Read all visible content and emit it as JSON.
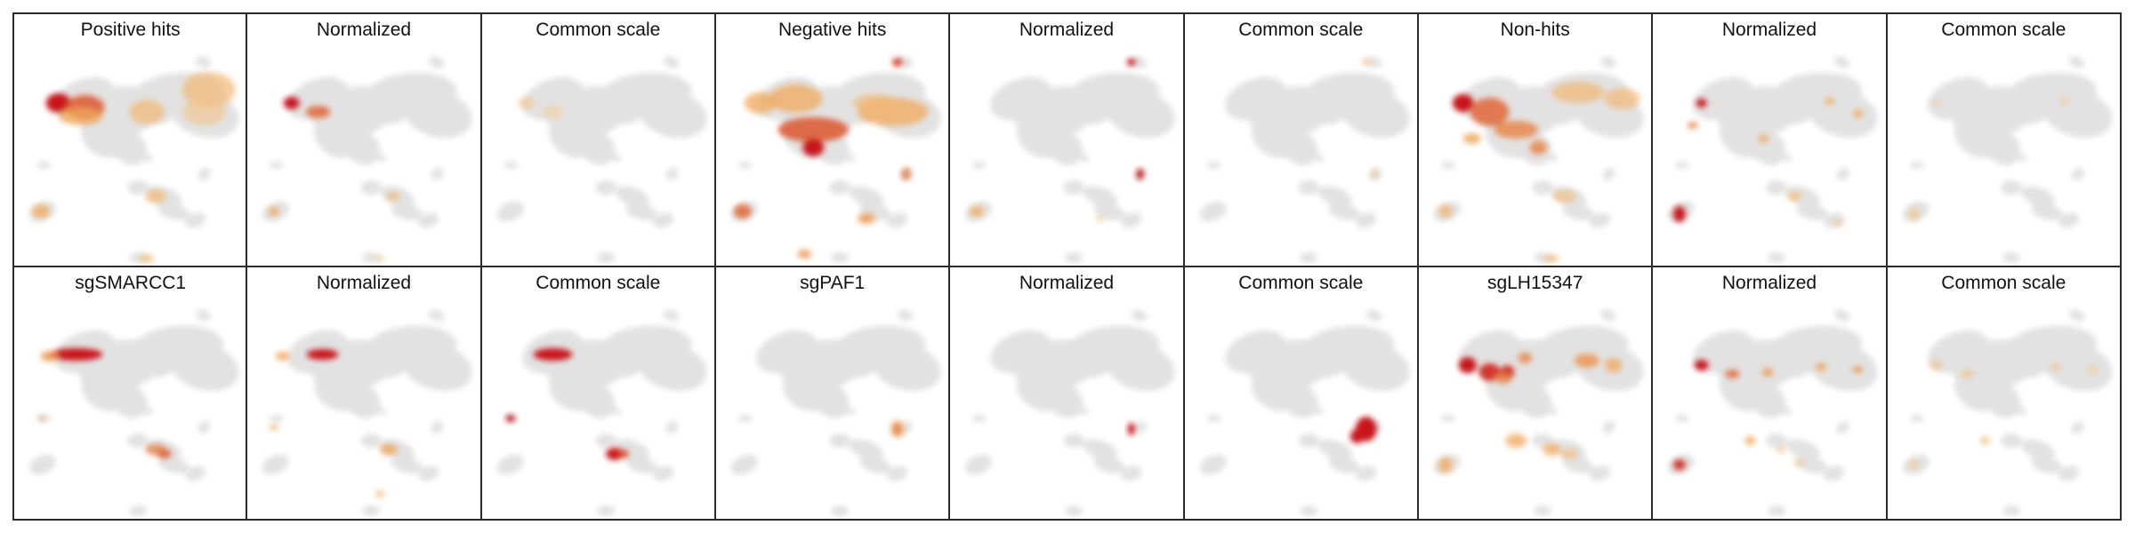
{
  "figure": {
    "colors": {
      "background_cells": "#e2e2e2",
      "low_density": "#f3ebcc",
      "mid_density": "#f0a050",
      "high_density": "#c8151a",
      "panel_border": "#2b2b2b"
    },
    "rows": [
      {
        "panels": [
          {
            "title": "Positive hits"
          },
          {
            "title": "Normalized"
          },
          {
            "title": "Common scale"
          },
          {
            "title": "Negative hits"
          },
          {
            "title": "Normalized"
          },
          {
            "title": "Common scale"
          },
          {
            "title": "Non-hits"
          },
          {
            "title": "Normalized"
          },
          {
            "title": "Common scale"
          }
        ]
      },
      {
        "panels": [
          {
            "title": "sgSMARCC1"
          },
          {
            "title": "Normalized"
          },
          {
            "title": "Common scale"
          },
          {
            "title": "sgPAF1"
          },
          {
            "title": "Normalized"
          },
          {
            "title": "Common scale"
          },
          {
            "title": "sgLH15347"
          },
          {
            "title": "Normalized"
          },
          {
            "title": "Common scale"
          }
        ]
      }
    ]
  }
}
